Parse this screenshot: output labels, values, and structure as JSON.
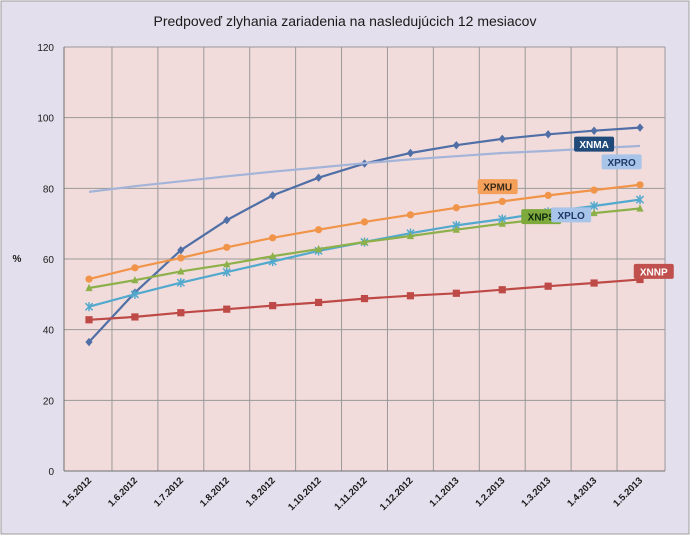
{
  "chart_data": {
    "type": "line",
    "title": "Predpoveď zlyhania zariadenia na nasledujúcich 12 mesiacov",
    "xlabel": "",
    "ylabel": "%",
    "ylim": [
      0,
      120
    ],
    "yticks": [
      0,
      20,
      40,
      60,
      80,
      100,
      120
    ],
    "grid": true,
    "categories": [
      "1.5.2012",
      "1.6.2012",
      "1.7.2012",
      "1.8.2012",
      "1.9.2012",
      "1.10.2012",
      "1.11.2012",
      "1.12.2012",
      "1.1.2013",
      "1.2.2013",
      "1.3.2013",
      "1.4.2013",
      "1.5.2013"
    ],
    "series": [
      {
        "name": "XNMA",
        "color": "#4F6FA6",
        "marker": "diamond",
        "values": [
          36.5,
          50.5,
          62.5,
          71,
          78,
          83,
          87,
          90,
          92.2,
          94,
          95.3,
          96.3,
          97.2
        ]
      },
      {
        "name": "XPRO",
        "color": "#A3B4D8",
        "marker": "none",
        "values": [
          79,
          80.6,
          82,
          83.4,
          84.7,
          85.9,
          87.1,
          88.2,
          89.1,
          90,
          90.6,
          91.3,
          92
        ]
      },
      {
        "name": "XPMU",
        "color": "#F0944A",
        "marker": "circle",
        "values": [
          54.3,
          57.5,
          60.3,
          63.3,
          66,
          68.3,
          70.5,
          72.5,
          74.5,
          76.3,
          78,
          79.5,
          81
        ]
      },
      {
        "name": "XPLO",
        "color": "#52A9CD",
        "marker": "x",
        "values": [
          46.5,
          50,
          53.3,
          56.3,
          59.3,
          62.3,
          64.8,
          67.3,
          69.5,
          71.3,
          73.3,
          75,
          76.8
        ]
      },
      {
        "name": "XNPS",
        "color": "#8DB04A",
        "marker": "triangle",
        "values": [
          51.8,
          54,
          56.5,
          58.5,
          60.8,
          62.8,
          64.8,
          66.5,
          68.3,
          70,
          71.5,
          73,
          74.3
        ]
      },
      {
        "name": "XNNP",
        "color": "#BE4A47",
        "marker": "square",
        "values": [
          42.8,
          43.6,
          44.8,
          45.8,
          46.8,
          47.7,
          48.8,
          49.6,
          50.3,
          51.3,
          52.3,
          53.2,
          54.2
        ]
      }
    ],
    "labels": [
      {
        "series": "XNMA",
        "text": "XNMA",
        "fill": "#1F4A7A",
        "color": "#ffffff",
        "at_index": 11,
        "at_value": 92.5
      },
      {
        "series": "XPRO",
        "text": "XPRO",
        "fill": "#A8C4E8",
        "color": "#1F3A6A",
        "at_index": 11.6,
        "at_value": 87.5
      },
      {
        "series": "XPMU",
        "text": "XPMU",
        "fill": "#F4A05A",
        "color": "#3A2A1A",
        "at_index": 8.9,
        "at_value": 80.5
      },
      {
        "series": "XNPS",
        "text": "XNPS",
        "fill": "#7EA93C",
        "color": "#0F2A0F",
        "at_index": 9.85,
        "at_value": 72
      },
      {
        "series": "XPLO",
        "text": "XPLO",
        "fill": "#A8C4E8",
        "color": "#1F3A6A",
        "at_index": 10.5,
        "at_value": 72.5
      },
      {
        "series": "XNNP",
        "text": "XNNP",
        "fill": "#C0504D",
        "color": "#ffffff",
        "at_index": 12.3,
        "at_value": 56.5
      }
    ],
    "colors": {
      "page_background": "#E4DFEC",
      "plot_background": "#F2DCDB",
      "grid": "#999999"
    }
  }
}
